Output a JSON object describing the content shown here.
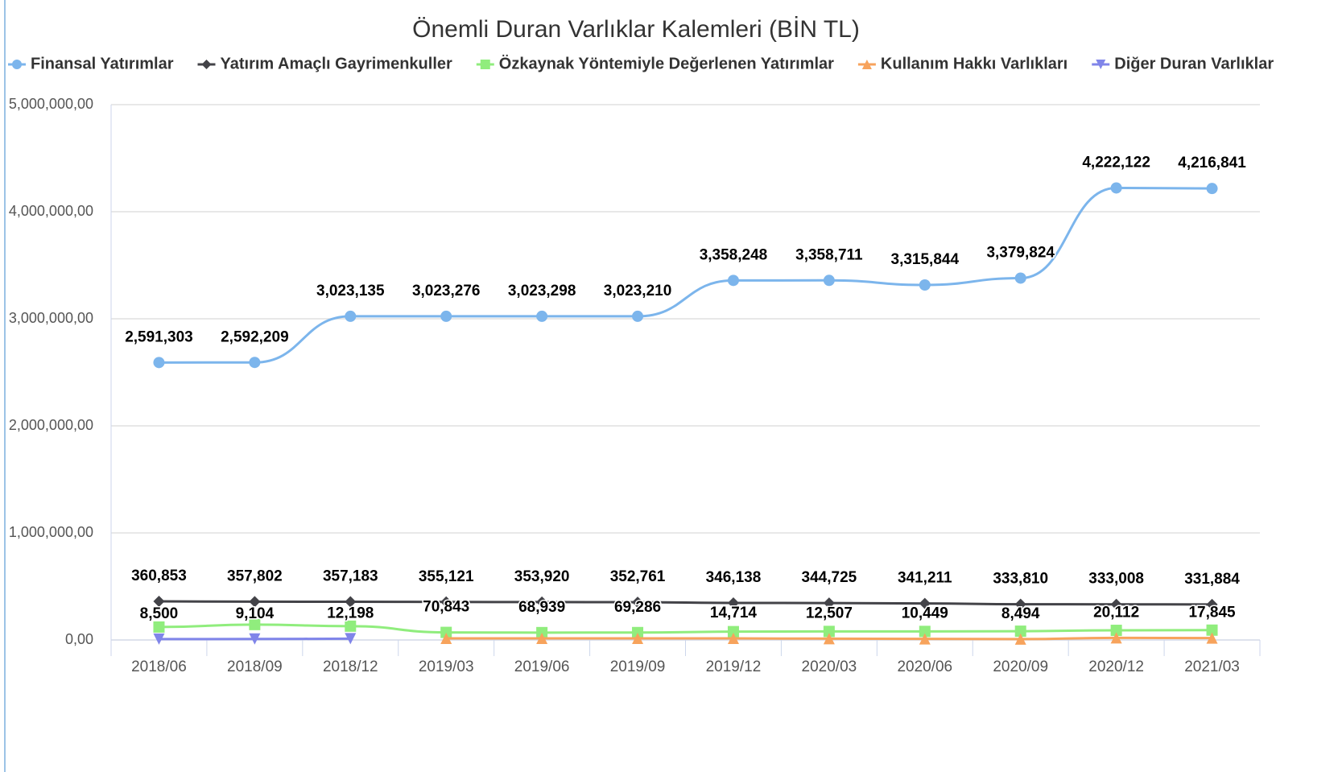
{
  "chart_data": {
    "type": "line",
    "title": "Önemli Duran Varlıklar Kalemleri (BİN TL)",
    "categories": [
      "2018/06",
      "2018/09",
      "2018/12",
      "2019/03",
      "2019/06",
      "2019/09",
      "2019/12",
      "2020/03",
      "2020/06",
      "2020/09",
      "2020/12",
      "2021/03"
    ],
    "ylim": [
      0,
      5000000
    ],
    "yticks": [
      {
        "value": 0,
        "label": "0,00"
      },
      {
        "value": 1000000,
        "label": "1,000,000,00"
      },
      {
        "value": 2000000,
        "label": "2,000,000,00"
      },
      {
        "value": 3000000,
        "label": "3,000,000,00"
      },
      {
        "value": 4000000,
        "label": "4,000,000,00"
      },
      {
        "value": 5000000,
        "label": "5,000,000,00"
      }
    ],
    "grid": true,
    "legend": "top",
    "series": [
      {
        "name": "Finansal Yatırımlar",
        "color": "#7cb5ec",
        "marker": "circle",
        "values": [
          2591303,
          2592209,
          3023135,
          3023276,
          3023298,
          3023210,
          3358248,
          3358711,
          3315844,
          3379824,
          4222122,
          4216841
        ],
        "value_labels": [
          "2,591,303",
          "2,592,209",
          "3,023,135",
          "3,023,276",
          "3,023,298",
          "3,023,210",
          "3,358,248",
          "3,358,711",
          "3,315,844",
          "3,379,824",
          "4,222,122",
          "4,216,841"
        ]
      },
      {
        "name": "Yatırım Amaçlı Gayrimenkuller",
        "color": "#434348",
        "marker": "diamond",
        "values": [
          360853,
          357802,
          357183,
          355121,
          353920,
          352761,
          346138,
          344725,
          341211,
          333810,
          333008,
          331884
        ],
        "value_labels": [
          "360,853",
          "357,802",
          "357,183",
          "355,121",
          "353,920",
          "352,761",
          "346,138",
          "344,725",
          "341,211",
          "333,810",
          "333,008",
          "331,884"
        ]
      },
      {
        "name": "Özkaynak Yöntemiyle Değerlenen Yatırımlar",
        "color": "#90ed7d",
        "marker": "square",
        "values": [
          121000,
          144000,
          129000,
          70843,
          68939,
          69286,
          78000,
          80000,
          80000,
          82000,
          90000,
          92000
        ],
        "value_labels": [
          null,
          null,
          null,
          "70,843",
          "68,939",
          "69,286",
          null,
          null,
          null,
          null,
          null,
          null
        ]
      },
      {
        "name": "Kullanım Hakkı Varlıkları",
        "color": "#f7a35c",
        "marker": "triangle",
        "values": [
          null,
          null,
          null,
          15000,
          15000,
          15000,
          14714,
          12507,
          10449,
          8494,
          20112,
          17845
        ],
        "value_labels": [
          null,
          null,
          null,
          null,
          null,
          null,
          "14,714",
          "12,507",
          "10,449",
          "8,494",
          "20,112",
          "17,845"
        ]
      },
      {
        "name": "Diğer Duran Varlıklar",
        "color": "#8085e9",
        "marker": "triangle-down",
        "values": [
          8500,
          9104,
          12198,
          null,
          null,
          null,
          null,
          null,
          null,
          null,
          null,
          null
        ],
        "value_labels": [
          "8,500",
          "9,104",
          "12,198",
          null,
          null,
          null,
          null,
          null,
          null,
          null,
          null,
          null
        ]
      }
    ]
  }
}
